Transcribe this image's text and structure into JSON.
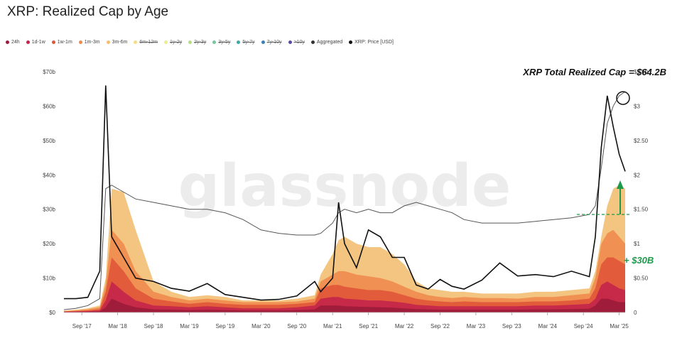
{
  "title": "XRP: Realized Cap by Age",
  "watermark": "glassnode",
  "legend": [
    {
      "label": "24h",
      "color": "#9b1b3a",
      "active": true
    },
    {
      "label": "1d-1w",
      "color": "#c4234a",
      "active": true
    },
    {
      "label": "1w-1m",
      "color": "#e0563a",
      "active": true
    },
    {
      "label": "1m-3m",
      "color": "#ef8a4c",
      "active": true
    },
    {
      "label": "3m-6m",
      "color": "#f2bf72",
      "active": true
    },
    {
      "label": "6m-12m",
      "color": "#f3dd86",
      "active": false
    },
    {
      "label": "1y-2y",
      "color": "#e9ec8f",
      "active": false
    },
    {
      "label": "2y-3y",
      "color": "#b5dc84",
      "active": false
    },
    {
      "label": "3y-5y",
      "color": "#74c79c",
      "active": false
    },
    {
      "label": "5y-7y",
      "color": "#3fa7a8",
      "active": false
    },
    {
      "label": "7y-10y",
      "color": "#3d7fb5",
      "active": false
    },
    {
      "label": ">10y",
      "color": "#5b4aa0",
      "active": false
    },
    {
      "label": "Aggregated",
      "color": "#333333",
      "active": true
    },
    {
      "label": "XRP: Price [USD]",
      "color": "#111111",
      "active": true
    }
  ],
  "annotations": {
    "total_label": "XRP Total Realized Cap = $64.2B",
    "increase_label": "+ $30B",
    "increase_color": "#1e9a4a"
  },
  "chart_data": {
    "type": "area",
    "x": [
      "2017-06",
      "2017-08",
      "2017-10",
      "2017-12",
      "2018-01",
      "2018-02",
      "2018-04",
      "2018-06",
      "2018-09",
      "2018-12",
      "2019-03",
      "2019-06",
      "2019-09",
      "2019-12",
      "2020-03",
      "2020-06",
      "2020-09",
      "2020-12",
      "2021-01",
      "2021-03",
      "2021-04",
      "2021-05",
      "2021-07",
      "2021-09",
      "2021-11",
      "2022-01",
      "2022-03",
      "2022-05",
      "2022-07",
      "2022-09",
      "2022-11",
      "2023-01",
      "2023-04",
      "2023-07",
      "2023-10",
      "2024-01",
      "2024-04",
      "2024-07",
      "2024-10",
      "2024-11",
      "2024-12",
      "2025-01",
      "2025-02",
      "2025-03",
      "2025-04"
    ],
    "series": [
      {
        "name": "3m-6m",
        "axis": "left",
        "unit": "$b",
        "color": "#f2bf72",
        "values": [
          0.5,
          0.8,
          1.2,
          2,
          10,
          36,
          35,
          24,
          9,
          6,
          4.5,
          5,
          4.5,
          3.5,
          3.5,
          3.5,
          4,
          5,
          11,
          17,
          21,
          22,
          20,
          19,
          19,
          17,
          14,
          9,
          7,
          6.5,
          6,
          6,
          5.5,
          5.5,
          5.5,
          6,
          6,
          6.5,
          7,
          12,
          22,
          31,
          36,
          37,
          36
        ]
      },
      {
        "name": "1m-3m",
        "axis": "left",
        "unit": "$b",
        "color": "#ef8a4c",
        "values": [
          0.4,
          0.6,
          0.9,
          1.5,
          8,
          24,
          20,
          12,
          6,
          4.5,
          3.5,
          4,
          3.5,
          3,
          3,
          3,
          3.2,
          4,
          9,
          11,
          12,
          12,
          11,
          10.5,
          10,
          9,
          7.5,
          6,
          5,
          4.5,
          4.2,
          4.5,
          4.2,
          4.2,
          4,
          4.5,
          4.5,
          5,
          5.5,
          10,
          20,
          23,
          24,
          22,
          20
        ]
      },
      {
        "name": "1w-1m",
        "axis": "left",
        "unit": "$b",
        "color": "#e0563a",
        "values": [
          0.3,
          0.4,
          0.6,
          1,
          6,
          16,
          12,
          7,
          4,
          3.2,
          2.5,
          3,
          2.5,
          2.2,
          2.2,
          2.2,
          2.5,
          3,
          7,
          8,
          8,
          7.5,
          7,
          6.5,
          6.5,
          6,
          5,
          4,
          3.5,
          3.2,
          3,
          3.2,
          3,
          3,
          3,
          3.2,
          3.2,
          3.5,
          4,
          7,
          14,
          16,
          16,
          15,
          14
        ]
      },
      {
        "name": "1d-1w",
        "axis": "left",
        "unit": "$b",
        "color": "#c4234a",
        "values": [
          0.2,
          0.3,
          0.4,
          0.6,
          3.5,
          9,
          6,
          3.5,
          2,
          1.8,
          1.5,
          1.8,
          1.5,
          1.2,
          1.2,
          1.2,
          1.5,
          2,
          4,
          4.5,
          4.5,
          4,
          3.8,
          3.5,
          3.5,
          3.2,
          2.8,
          2.2,
          2,
          1.8,
          1.8,
          1.8,
          1.8,
          1.8,
          1.8,
          2,
          2,
          2.2,
          2.5,
          4,
          8,
          9,
          8,
          7,
          6.5
        ]
      },
      {
        "name": "24h",
        "axis": "left",
        "unit": "$b",
        "color": "#9b1b3a",
        "values": [
          0.1,
          0.1,
          0.2,
          0.3,
          1.5,
          4,
          2.5,
          1.5,
          0.9,
          0.8,
          0.7,
          0.8,
          0.7,
          0.6,
          0.6,
          0.6,
          0.7,
          0.9,
          2,
          2,
          2,
          1.8,
          1.7,
          1.6,
          1.5,
          1.4,
          1.2,
          1,
          0.9,
          0.8,
          0.8,
          0.8,
          0.8,
          0.8,
          0.8,
          0.9,
          0.9,
          1,
          1.1,
          2,
          4,
          4,
          3.5,
          3,
          3
        ]
      },
      {
        "name": "Aggregated",
        "axis": "left",
        "unit": "$b",
        "color": "#555555",
        "values": [
          0.8,
          1.2,
          2,
          4,
          36,
          37,
          35,
          33,
          32,
          31,
          30,
          30,
          29,
          27,
          24,
          23,
          22.5,
          22.5,
          23,
          26,
          29,
          30,
          29,
          30,
          29,
          29,
          31,
          32,
          31,
          30,
          29,
          27,
          26,
          26,
          26,
          26.5,
          27,
          27.5,
          28.5,
          31,
          42,
          55,
          60,
          63,
          64.2
        ]
      },
      {
        "name": "XRP: Price [USD]",
        "axis": "right",
        "unit": "USD",
        "color": "#111111",
        "values": [
          0.2,
          0.2,
          0.22,
          0.6,
          3.3,
          1.1,
          0.8,
          0.5,
          0.45,
          0.35,
          0.31,
          0.42,
          0.26,
          0.22,
          0.18,
          0.19,
          0.24,
          0.45,
          0.3,
          0.5,
          1.6,
          1.0,
          0.65,
          1.2,
          1.1,
          0.8,
          0.8,
          0.4,
          0.34,
          0.48,
          0.38,
          0.34,
          0.47,
          0.72,
          0.53,
          0.55,
          0.52,
          0.6,
          0.52,
          1.1,
          2.4,
          3.15,
          2.7,
          2.3,
          2.05
        ]
      }
    ],
    "left_axis": {
      "ticks": [
        "$0",
        "$10b",
        "$20b",
        "$30b",
        "$40b",
        "$50b",
        "$60b",
        "$70b"
      ],
      "values": [
        0,
        10,
        20,
        30,
        40,
        50,
        60,
        70
      ],
      "ylim": [
        0,
        70
      ]
    },
    "right_axis": {
      "ticks": [
        "0",
        "$0.50",
        "$1",
        "$1.50",
        "$2",
        "$2.50",
        "$3",
        "$3.50"
      ],
      "values": [
        0,
        0.5,
        1,
        1.5,
        2,
        2.5,
        3,
        3.5
      ],
      "ylim": [
        0,
        3.5
      ]
    },
    "x_ticks": [
      "Sep '17",
      "Mar '18",
      "Sep '18",
      "Mar '19",
      "Sep '19",
      "Mar '20",
      "Sep '20",
      "Mar '21",
      "Sep '21",
      "Mar '22",
      "Sep '22",
      "Mar '23",
      "Sep '23",
      "Mar '24",
      "Sep '24",
      "Mar '25"
    ],
    "x_tick_dates": [
      "2017-09",
      "2018-03",
      "2018-09",
      "2019-03",
      "2019-09",
      "2020-03",
      "2020-09",
      "2021-03",
      "2021-09",
      "2022-03",
      "2022-09",
      "2023-03",
      "2023-09",
      "2024-03",
      "2024-09",
      "2025-03"
    ],
    "xlim": [
      "2017-06",
      "2025-04"
    ],
    "grid": false,
    "legend_position": "top-left"
  }
}
